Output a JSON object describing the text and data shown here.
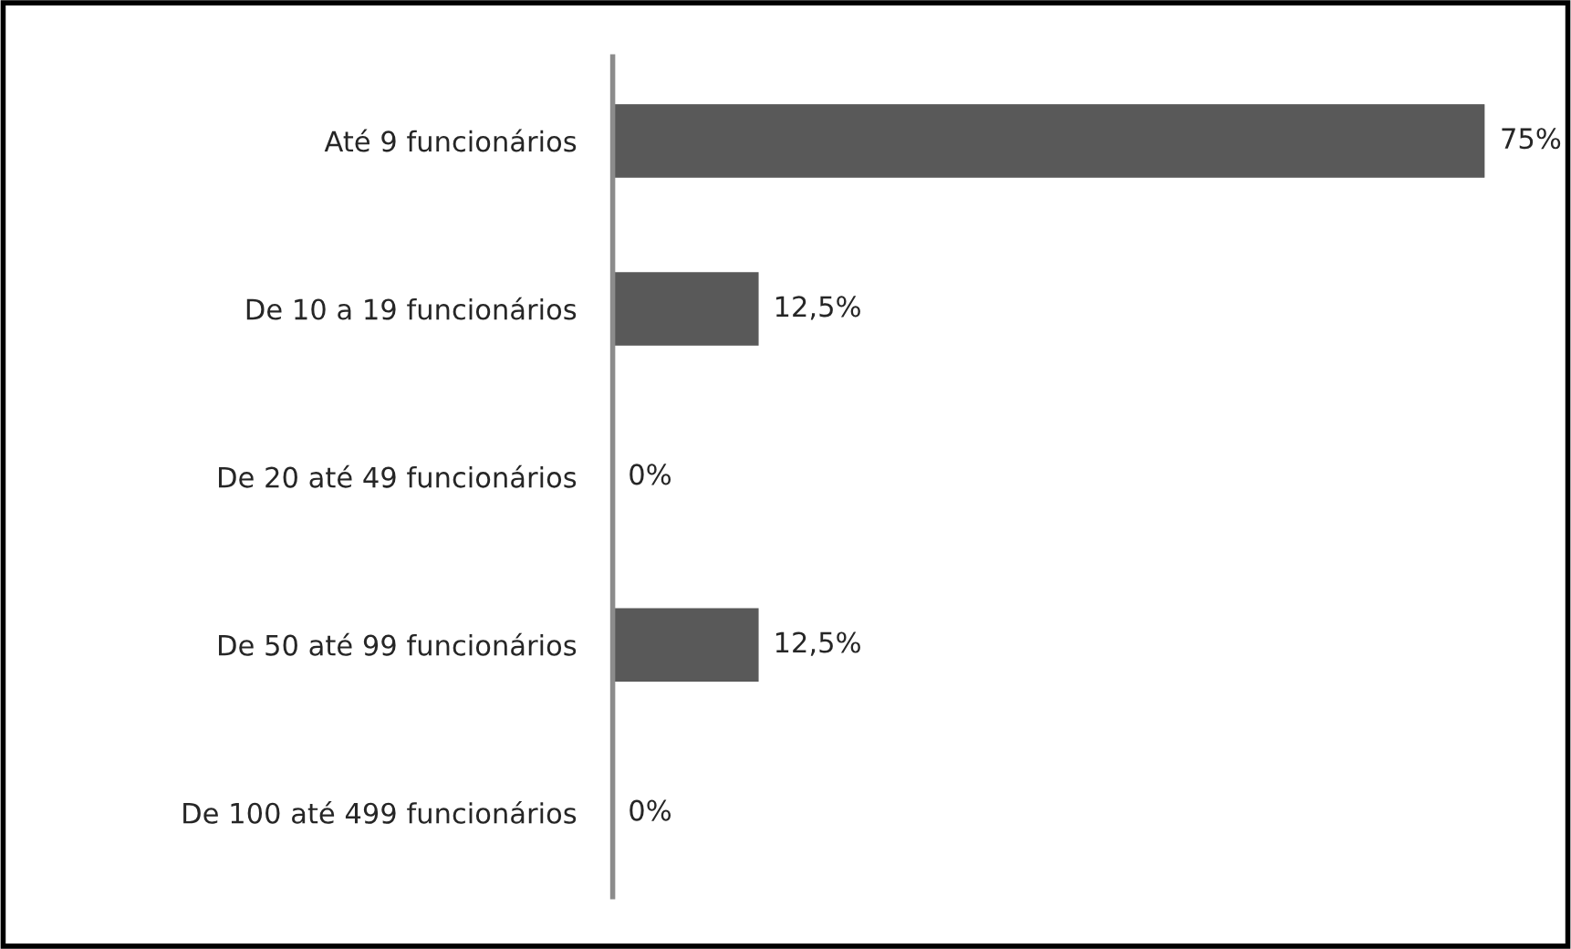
{
  "chart_data": {
    "type": "bar",
    "orientation": "horizontal",
    "categories": [
      "Até 9 funcionários",
      "De 10 a 19 funcionários",
      "De 20 até 49 funcionários",
      "De 50 até 99 funcionários",
      "De 100 até 499 funcionários"
    ],
    "values": [
      75,
      12.5,
      0,
      12.5,
      0
    ],
    "value_labels": [
      "75%",
      "12,5%",
      "0%",
      "12,5%",
      "0%"
    ],
    "color": "#595959",
    "grid": false,
    "legend": false
  }
}
